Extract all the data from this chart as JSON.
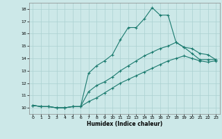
{
  "xlabel": "Humidex (Indice chaleur)",
  "xlim": [
    -0.5,
    23.5
  ],
  "ylim": [
    9.5,
    18.5
  ],
  "xticks": [
    0,
    1,
    2,
    3,
    4,
    5,
    6,
    7,
    8,
    9,
    10,
    11,
    12,
    13,
    14,
    15,
    16,
    17,
    18,
    19,
    20,
    21,
    22,
    23
  ],
  "yticks": [
    10,
    11,
    12,
    13,
    14,
    15,
    16,
    17,
    18
  ],
  "line_color": "#1a7a6e",
  "bg_color": "#cce8e8",
  "grid_color": "#aad0d0",
  "line1_x": [
    0,
    1,
    2,
    3,
    4,
    5,
    6,
    7,
    8,
    9,
    10,
    11,
    12,
    13,
    14,
    15,
    16,
    17,
    18,
    19,
    20,
    21,
    22,
    23
  ],
  "line1_y": [
    10.2,
    10.1,
    10.1,
    10.0,
    10.0,
    10.1,
    10.1,
    12.8,
    13.4,
    13.8,
    14.3,
    15.5,
    16.5,
    16.5,
    17.2,
    18.1,
    17.5,
    17.5,
    15.3,
    14.9,
    14.4,
    13.9,
    13.9,
    13.9
  ],
  "line2_x": [
    0,
    1,
    2,
    3,
    4,
    5,
    6,
    7,
    8,
    9,
    10,
    11,
    12,
    13,
    14,
    15,
    16,
    17,
    18,
    19,
    20,
    21,
    22,
    23
  ],
  "line2_y": [
    10.2,
    10.1,
    10.1,
    10.0,
    10.0,
    10.1,
    10.1,
    11.3,
    11.8,
    12.1,
    12.5,
    13.0,
    13.4,
    13.8,
    14.2,
    14.5,
    14.8,
    15.0,
    15.3,
    14.9,
    14.8,
    14.4,
    14.3,
    13.9
  ],
  "line3_x": [
    0,
    1,
    2,
    3,
    4,
    5,
    6,
    7,
    8,
    9,
    10,
    11,
    12,
    13,
    14,
    15,
    16,
    17,
    18,
    19,
    20,
    21,
    22,
    23
  ],
  "line3_y": [
    10.2,
    10.1,
    10.1,
    10.0,
    10.0,
    10.1,
    10.1,
    10.5,
    10.8,
    11.2,
    11.6,
    12.0,
    12.3,
    12.6,
    12.9,
    13.2,
    13.5,
    13.8,
    14.0,
    14.2,
    14.0,
    13.8,
    13.7,
    13.8
  ]
}
